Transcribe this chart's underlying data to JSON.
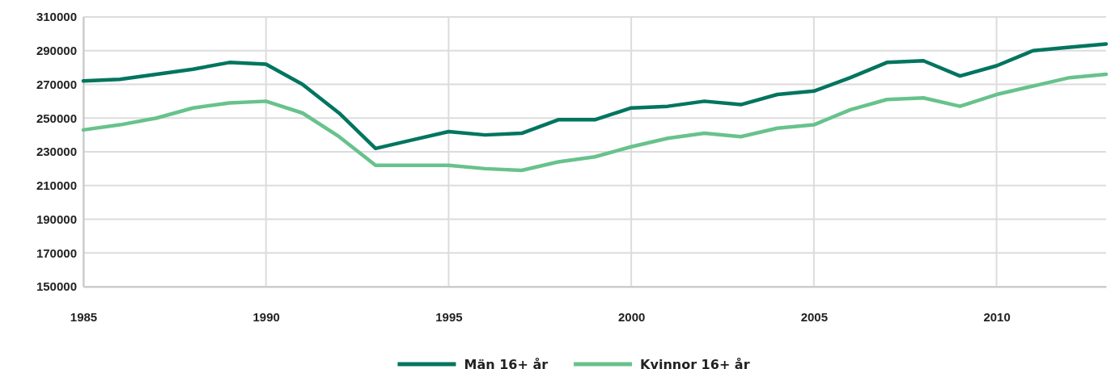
{
  "chart_data": {
    "type": "line",
    "x": [
      1985,
      1986,
      1987,
      1988,
      1989,
      1990,
      1991,
      1992,
      1993,
      1994,
      1995,
      1996,
      1997,
      1998,
      1999,
      2000,
      2001,
      2002,
      2003,
      2004,
      2005,
      2006,
      2007,
      2008,
      2009,
      2010,
      2011,
      2012,
      2013
    ],
    "series": [
      {
        "name": "Män 16+ år",
        "color": "#00755f",
        "values": [
          272000,
          273000,
          276000,
          279000,
          283000,
          282000,
          270000,
          253000,
          232000,
          237000,
          242000,
          240000,
          241000,
          249000,
          249000,
          256000,
          257000,
          260000,
          258000,
          264000,
          266000,
          274000,
          283000,
          284000,
          275000,
          281000,
          290000,
          292000,
          294000
        ]
      },
      {
        "name": "Kvinnor 16+ år",
        "color": "#67c28c",
        "values": [
          243000,
          246000,
          250000,
          256000,
          259000,
          260000,
          253000,
          239000,
          222000,
          222000,
          222000,
          220000,
          219000,
          224000,
          227000,
          233000,
          238000,
          241000,
          239000,
          244000,
          246000,
          255000,
          261000,
          262000,
          257000,
          264000,
          269000,
          274000,
          276000
        ]
      }
    ],
    "xlim": [
      1985,
      2013
    ],
    "xticks": [
      1985,
      1990,
      1995,
      2000,
      2005,
      2010
    ],
    "ylim": [
      150000,
      310000
    ],
    "yticks": [
      150000,
      170000,
      190000,
      210000,
      230000,
      250000,
      270000,
      290000,
      310000
    ],
    "grid": true,
    "legend": "bottom",
    "marker": "none",
    "line_style": "solid"
  }
}
